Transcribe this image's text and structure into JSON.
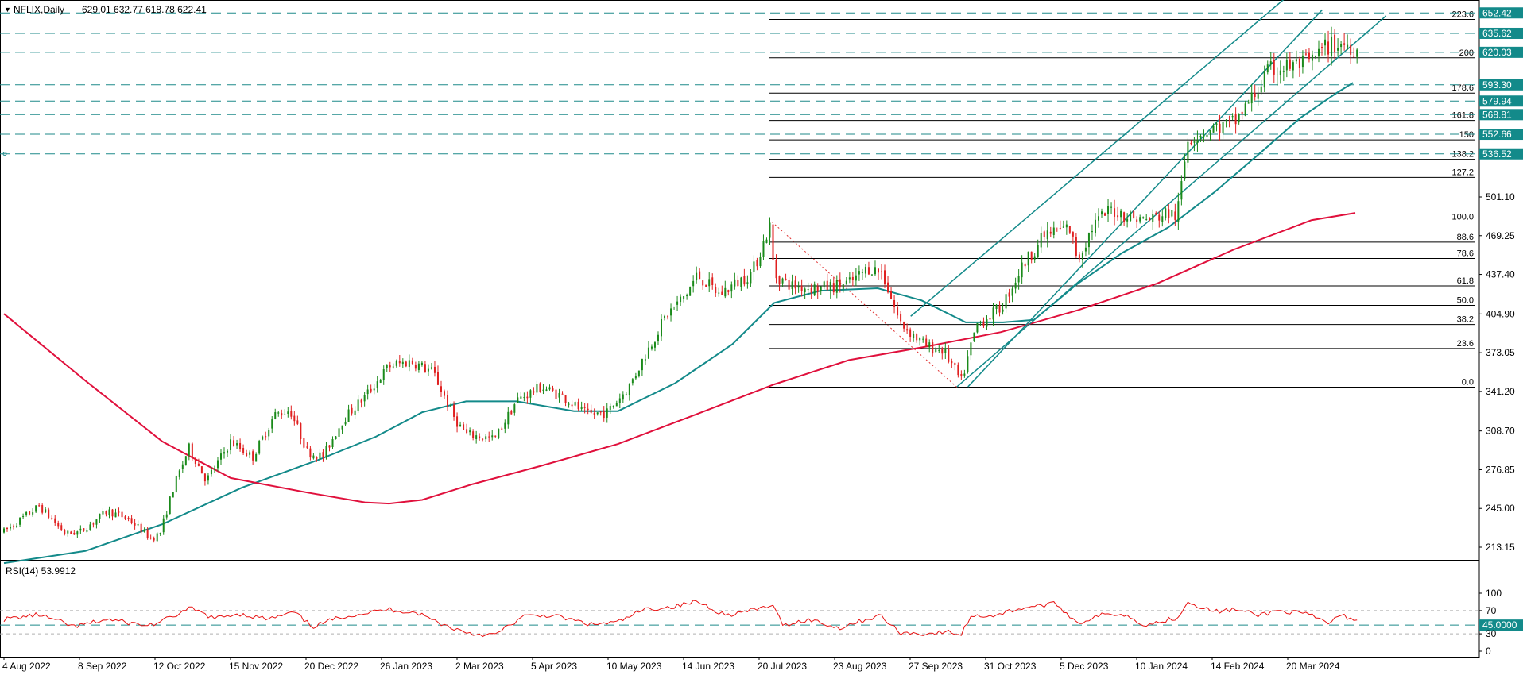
{
  "header": {
    "symbol_label": "NFLIX,Daily",
    "ohlc": "629.01 632.77 618.78 622.41"
  },
  "rsi_header": {
    "label": "RSI(14) 53.9912"
  },
  "colors": {
    "bull": "#1a8a1a",
    "bear": "#e02020",
    "ma_fast": "#138a8a",
    "ma_slow": "#e0103c",
    "channel": "#138a8a",
    "fib": "#000000",
    "level_dash": "#1f8a8a",
    "price_tag_bg": "#138a8a",
    "rsi": "#e81010"
  },
  "chart_data": [
    {
      "type": "candlestick",
      "title": "NFLIX,Daily",
      "ohlc_last": {
        "open": 629.01,
        "high": 632.77,
        "low": 618.78,
        "close": 622.41
      },
      "x_tick_labels": [
        "4 Aug 2022",
        "8 Sep 2022",
        "12 Oct 2022",
        "15 Nov 2022",
        "20 Dec 2022",
        "26 Jan 2023",
        "2 Mar 2023",
        "5 Apr 2023",
        "10 May 2023",
        "14 Jun 2023",
        "20 Jul 2023",
        "23 Aug 2023",
        "27 Sep 2023",
        "31 Oct 2023",
        "5 Dec 2023",
        "10 Jan 2024",
        "14 Feb 2024",
        "20 Mar 2024"
      ],
      "y_tick_labels": [
        "213.15",
        "245.00",
        "276.85",
        "308.70",
        "341.20",
        "373.05",
        "404.90",
        "437.40",
        "469.25",
        "501.10"
      ],
      "ylim": [
        200,
        660
      ],
      "price_path": [
        [
          "2022-08-04",
          226
        ],
        [
          "2022-08-20",
          247
        ],
        [
          "2022-09-01",
          224
        ],
        [
          "2022-09-08",
          226
        ],
        [
          "2022-09-20",
          243
        ],
        [
          "2022-09-30",
          236
        ],
        [
          "2022-10-10",
          220
        ],
        [
          "2022-10-14",
          225
        ],
        [
          "2022-10-20",
          262
        ],
        [
          "2022-10-27",
          295
        ],
        [
          "2022-11-04",
          268
        ],
        [
          "2022-11-15",
          300
        ],
        [
          "2022-11-25",
          287
        ],
        [
          "2022-12-05",
          322
        ],
        [
          "2022-12-12",
          326
        ],
        [
          "2022-12-20",
          291
        ],
        [
          "2022-12-27",
          288
        ],
        [
          "2023-01-05",
          318
        ],
        [
          "2023-01-15",
          337
        ],
        [
          "2023-01-26",
          362
        ],
        [
          "2023-02-05",
          366
        ],
        [
          "2023-02-15",
          357
        ],
        [
          "2023-02-25",
          318
        ],
        [
          "2023-03-02",
          306
        ],
        [
          "2023-03-15",
          302
        ],
        [
          "2023-03-25",
          334
        ],
        [
          "2023-04-05",
          345
        ],
        [
          "2023-04-15",
          337
        ],
        [
          "2023-04-26",
          322
        ],
        [
          "2023-05-05",
          324
        ],
        [
          "2023-05-15",
          345
        ],
        [
          "2023-05-22",
          370
        ],
        [
          "2023-06-01",
          404
        ],
        [
          "2023-06-10",
          421
        ],
        [
          "2023-06-15",
          437
        ],
        [
          "2023-06-25",
          421
        ],
        [
          "2023-07-10",
          439
        ],
        [
          "2023-07-18",
          477
        ],
        [
          "2023-07-20",
          437
        ],
        [
          "2023-07-28",
          428
        ],
        [
          "2023-08-10",
          426
        ],
        [
          "2023-08-23",
          430
        ],
        [
          "2023-09-01",
          443
        ],
        [
          "2023-09-07",
          439
        ],
        [
          "2023-09-15",
          398
        ],
        [
          "2023-09-27",
          378
        ],
        [
          "2023-10-05",
          375
        ],
        [
          "2023-10-13",
          349
        ],
        [
          "2023-10-20",
          396
        ],
        [
          "2023-10-31",
          410
        ],
        [
          "2023-11-10",
          445
        ],
        [
          "2023-11-20",
          470
        ],
        [
          "2023-12-01",
          476
        ],
        [
          "2023-12-05",
          450
        ],
        [
          "2023-12-12",
          478
        ],
        [
          "2023-12-20",
          491
        ],
        [
          "2023-12-28",
          485
        ],
        [
          "2024-01-05",
          482
        ],
        [
          "2024-01-15",
          488
        ],
        [
          "2024-01-19",
          485
        ],
        [
          "2024-01-24",
          550
        ],
        [
          "2024-02-05",
          558
        ],
        [
          "2024-02-14",
          562
        ],
        [
          "2024-02-22",
          582
        ],
        [
          "2024-03-01",
          605
        ],
        [
          "2024-03-08",
          608
        ],
        [
          "2024-03-20",
          612
        ],
        [
          "2024-03-27",
          625
        ],
        [
          "2024-04-05",
          627
        ],
        [
          "2024-04-10",
          622
        ]
      ],
      "moving_averages": [
        {
          "color_key": "ma_fast",
          "values": [
            [
              "2022-08-04",
              200
            ],
            [
              "2022-09-10",
              210
            ],
            [
              "2022-10-15",
              232
            ],
            [
              "2022-11-20",
              262
            ],
            [
              "2022-12-25",
              285
            ],
            [
              "2023-01-20",
              304
            ],
            [
              "2023-02-10",
              324
            ],
            [
              "2023-03-02",
              333
            ],
            [
              "2023-03-25",
              333
            ],
            [
              "2023-04-20",
              325
            ],
            [
              "2023-05-10",
              325
            ],
            [
              "2023-06-05",
              348
            ],
            [
              "2023-07-01",
              380
            ],
            [
              "2023-07-20",
              414
            ],
            [
              "2023-08-10",
              424
            ],
            [
              "2023-09-05",
              426
            ],
            [
              "2023-09-25",
              416
            ],
            [
              "2023-10-15",
              398
            ],
            [
              "2023-11-01",
              398
            ],
            [
              "2023-11-15",
              400
            ],
            [
              "2023-12-05",
              430
            ],
            [
              "2023-12-25",
              455
            ],
            [
              "2024-01-15",
              476
            ],
            [
              "2024-02-05",
              505
            ],
            [
              "2024-02-25",
              536
            ],
            [
              "2024-03-15",
              566
            ],
            [
              "2024-03-31",
              586
            ],
            [
              "2024-04-08",
              595
            ]
          ]
        },
        {
          "color_key": "ma_slow",
          "values": [
            [
              "2022-08-04",
              405
            ],
            [
              "2022-09-10",
              350
            ],
            [
              "2022-10-15",
              300
            ],
            [
              "2022-11-15",
              270
            ],
            [
              "2022-12-20",
              258
            ],
            [
              "2023-01-15",
              250
            ],
            [
              "2023-01-26",
              249
            ],
            [
              "2023-02-10",
              252
            ],
            [
              "2023-03-05",
              265
            ],
            [
              "2023-04-05",
              280
            ],
            [
              "2023-05-10",
              298
            ],
            [
              "2023-06-14",
              322
            ],
            [
              "2023-07-20",
              347
            ],
            [
              "2023-08-23",
              367
            ],
            [
              "2023-09-27",
              378
            ],
            [
              "2023-10-31",
              390
            ],
            [
              "2023-12-05",
              408
            ],
            [
              "2024-01-10",
              430
            ],
            [
              "2024-02-14",
              458
            ],
            [
              "2024-03-20",
              482
            ],
            [
              "2024-04-09",
              488
            ]
          ]
        }
      ],
      "channel_lines": [
        [
          [
            "2023-10-16",
            345
          ],
          [
            "2024-03-25",
            655
          ]
        ],
        [
          [
            "2023-10-11",
            345
          ],
          [
            "2024-04-23",
            650
          ]
        ],
        [
          [
            "2023-09-20",
            403
          ],
          [
            "2024-03-15",
            675
          ]
        ]
      ],
      "fibonacci": {
        "start_date": "2023-07-19",
        "low_date": "2023-10-11",
        "labels": [
          "0.0",
          "23.6",
          "38.2",
          "50.0",
          "61.8",
          "78.6",
          "88.6",
          "100.0",
          "127.2",
          "138.2",
          "150",
          "161.8",
          "178.6",
          "200",
          "223.6"
        ],
        "prices": [
          344.7,
          376.5,
          396.2,
          412.0,
          428.0,
          450.5,
          464.0,
          480.5,
          517.2,
          532.0,
          548.0,
          564.0,
          586.5,
          615.5,
          647.0
        ]
      },
      "horizontal_levels": [
        {
          "price": 652.42,
          "label": "652.42"
        },
        {
          "price": 635.62,
          "label": "635.62"
        },
        {
          "price": 620.03,
          "label": "620.03"
        },
        {
          "price": 593.3,
          "label": "593.30"
        },
        {
          "price": 579.94,
          "label": "579.94"
        },
        {
          "price": 568.81,
          "label": "568.81"
        },
        {
          "price": 552.66,
          "label": "552.66"
        },
        {
          "price": 536.52,
          "label": "536.52"
        }
      ]
    },
    {
      "type": "line",
      "title": "RSI(14) 53.9912",
      "ylim": [
        0,
        100
      ],
      "y_tick_labels": [
        "100",
        "70",
        "30",
        "0"
      ],
      "level": {
        "value": 45,
        "label": "45.0000"
      },
      "x_tick_labels": [],
      "values": [
        [
          "2022-08-04",
          55
        ],
        [
          "2022-08-20",
          63
        ],
        [
          "2022-09-05",
          42
        ],
        [
          "2022-09-20",
          55
        ],
        [
          "2022-10-08",
          44
        ],
        [
          "2022-10-14",
          50
        ],
        [
          "2022-10-28",
          74
        ],
        [
          "2022-11-08",
          56
        ],
        [
          "2022-11-18",
          65
        ],
        [
          "2022-12-02",
          55
        ],
        [
          "2022-12-14",
          67
        ],
        [
          "2022-12-22",
          42
        ],
        [
          "2023-01-05",
          60
        ],
        [
          "2023-01-26",
          72
        ],
        [
          "2023-02-08",
          66
        ],
        [
          "2023-02-22",
          42
        ],
        [
          "2023-03-05",
          30
        ],
        [
          "2023-03-15",
          28
        ],
        [
          "2023-03-28",
          60
        ],
        [
          "2023-04-10",
          62
        ],
        [
          "2023-04-28",
          46
        ],
        [
          "2023-05-10",
          50
        ],
        [
          "2023-05-22",
          72
        ],
        [
          "2023-06-05",
          77
        ],
        [
          "2023-06-15",
          86
        ],
        [
          "2023-06-28",
          62
        ],
        [
          "2023-07-12",
          72
        ],
        [
          "2023-07-19",
          80
        ],
        [
          "2023-07-24",
          45
        ],
        [
          "2023-08-05",
          55
        ],
        [
          "2023-08-18",
          40
        ],
        [
          "2023-09-06",
          62
        ],
        [
          "2023-09-15",
          32
        ],
        [
          "2023-09-27",
          30
        ],
        [
          "2023-10-08",
          33
        ],
        [
          "2023-10-13",
          28
        ],
        [
          "2023-10-17",
          60
        ],
        [
          "2023-10-28",
          62
        ],
        [
          "2023-11-10",
          75
        ],
        [
          "2023-11-25",
          82
        ],
        [
          "2023-12-05",
          48
        ],
        [
          "2023-12-15",
          62
        ],
        [
          "2023-12-25",
          65
        ],
        [
          "2024-01-05",
          45
        ],
        [
          "2024-01-19",
          58
        ],
        [
          "2024-01-24",
          85
        ],
        [
          "2024-02-05",
          68
        ],
        [
          "2024-02-14",
          72
        ],
        [
          "2024-02-25",
          62
        ],
        [
          "2024-03-05",
          70
        ],
        [
          "2024-03-18",
          64
        ],
        [
          "2024-03-28",
          48
        ],
        [
          "2024-04-02",
          62
        ],
        [
          "2024-04-10",
          54
        ]
      ]
    }
  ]
}
